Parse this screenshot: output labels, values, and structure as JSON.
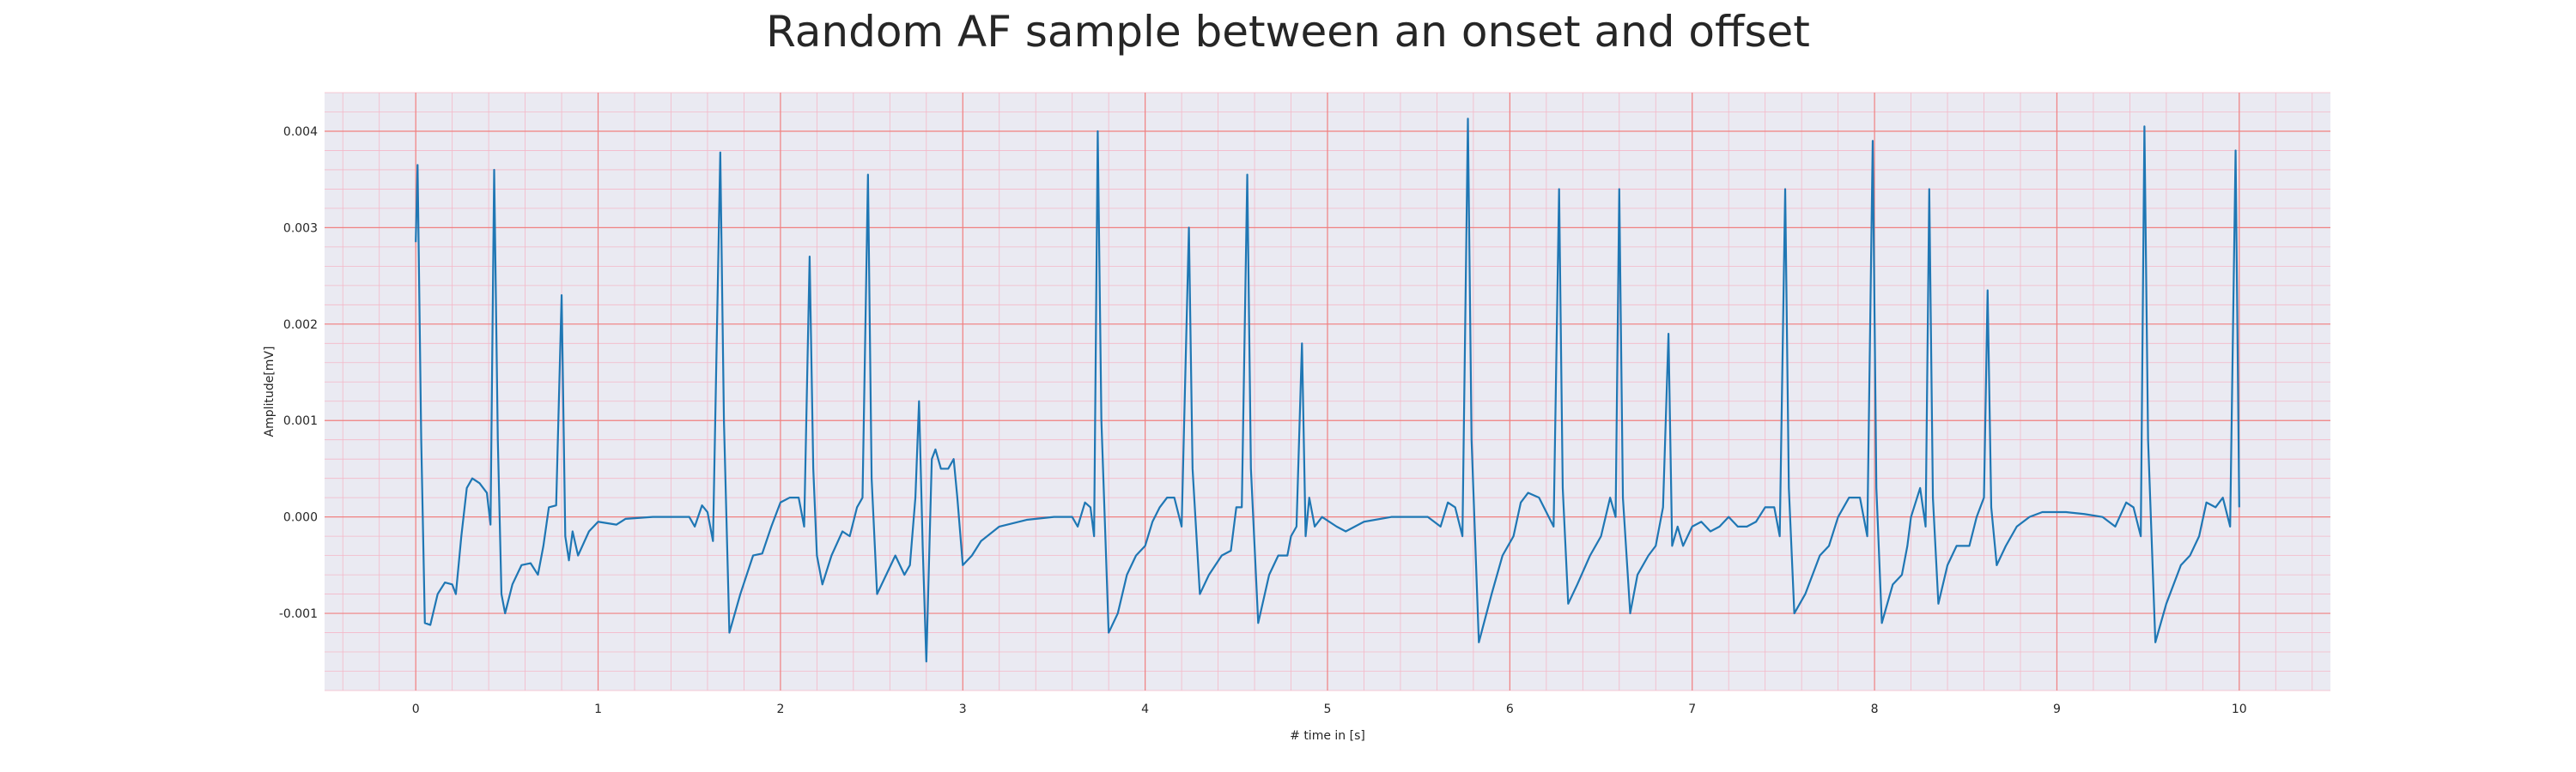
{
  "chart_data": {
    "type": "line",
    "title": "Random AF sample between an onset and offset",
    "xlabel": "# time in [s]",
    "ylabel": "Amplitude[mV]",
    "xlim": [
      -0.5,
      10.5
    ],
    "ylim": [
      -0.0018,
      0.0044
    ],
    "xticks": [
      0,
      1,
      2,
      3,
      4,
      5,
      6,
      7,
      8,
      9,
      10
    ],
    "xtick_labels": [
      "0",
      "1",
      "2",
      "3",
      "4",
      "5",
      "6",
      "7",
      "8",
      "9",
      "10"
    ],
    "yticks": [
      -0.001,
      0.0,
      0.001,
      0.002,
      0.003,
      0.004
    ],
    "ytick_labels": [
      "-0.001",
      "0.000",
      "0.001",
      "0.002",
      "0.003",
      "0.004"
    ],
    "grid": true,
    "minor_grid": true,
    "colors": {
      "background": "#eaeaf2",
      "major_grid": "#f08080",
      "minor_grid": "#f4b8c8",
      "line": "#1f77b4"
    },
    "series": [
      {
        "values": [
          [
            0.0,
            0.00285
          ],
          [
            0.01,
            0.00365
          ],
          [
            0.03,
            0.0008
          ],
          [
            0.05,
            -0.0011
          ],
          [
            0.08,
            -0.00112
          ],
          [
            0.12,
            -0.0008
          ],
          [
            0.16,
            -0.00068
          ],
          [
            0.2,
            -0.0007
          ],
          [
            0.22,
            -0.0008
          ],
          [
            0.25,
            -0.0002
          ],
          [
            0.28,
            0.0003
          ],
          [
            0.31,
            0.0004
          ],
          [
            0.35,
            0.00035
          ],
          [
            0.39,
            0.00025
          ],
          [
            0.41,
            -8e-05
          ],
          [
            0.43,
            0.0036
          ],
          [
            0.45,
            0.0008
          ],
          [
            0.47,
            -0.0008
          ],
          [
            0.49,
            -0.001
          ],
          [
            0.53,
            -0.0007
          ],
          [
            0.58,
            -0.0005
          ],
          [
            0.63,
            -0.00048
          ],
          [
            0.67,
            -0.0006
          ],
          [
            0.7,
            -0.0003
          ],
          [
            0.73,
            0.0001
          ],
          [
            0.77,
            0.00012
          ],
          [
            0.8,
            0.0023
          ],
          [
            0.82,
            -0.0002
          ],
          [
            0.84,
            -0.00045
          ],
          [
            0.86,
            -0.00015
          ],
          [
            0.89,
            -0.0004
          ],
          [
            0.95,
            -0.00015
          ],
          [
            1.0,
            -5e-05
          ],
          [
            1.1,
            -8e-05
          ],
          [
            1.15,
            -2e-05
          ],
          [
            1.3,
            0.0
          ],
          [
            1.45,
            0.0
          ],
          [
            1.5,
            0.0
          ],
          [
            1.53,
            -0.0001
          ],
          [
            1.57,
            0.00012
          ],
          [
            1.6,
            5e-05
          ],
          [
            1.63,
            -0.00025
          ],
          [
            1.67,
            0.00378
          ],
          [
            1.69,
            0.001
          ],
          [
            1.72,
            -0.0012
          ],
          [
            1.78,
            -0.0008
          ],
          [
            1.85,
            -0.0004
          ],
          [
            1.9,
            -0.00038
          ],
          [
            1.95,
            -0.0001
          ],
          [
            2.0,
            0.00015
          ],
          [
            2.05,
            0.0002
          ],
          [
            2.1,
            0.0002
          ],
          [
            2.13,
            -0.0001
          ],
          [
            2.16,
            0.0027
          ],
          [
            2.18,
            0.0005
          ],
          [
            2.2,
            -0.0004
          ],
          [
            2.23,
            -0.0007
          ],
          [
            2.28,
            -0.0004
          ],
          [
            2.34,
            -0.00015
          ],
          [
            2.38,
            -0.0002
          ],
          [
            2.42,
            0.0001
          ],
          [
            2.45,
            0.0002
          ],
          [
            2.48,
            0.00355
          ],
          [
            2.5,
            0.0004
          ],
          [
            2.53,
            -0.0008
          ],
          [
            2.58,
            -0.0006
          ],
          [
            2.63,
            -0.0004
          ],
          [
            2.68,
            -0.0006
          ],
          [
            2.71,
            -0.0005
          ],
          [
            2.74,
            0.0002
          ],
          [
            2.76,
            0.0012
          ],
          [
            2.78,
            -0.0003
          ],
          [
            2.8,
            -0.0015
          ],
          [
            2.83,
            0.0006
          ],
          [
            2.85,
            0.0007
          ],
          [
            2.88,
            0.0005
          ],
          [
            2.92,
            0.0005
          ],
          [
            2.95,
            0.0006
          ],
          [
            2.97,
            0.0002
          ],
          [
            3.0,
            -0.0005
          ],
          [
            3.05,
            -0.0004
          ],
          [
            3.1,
            -0.00025
          ],
          [
            3.2,
            -0.0001
          ],
          [
            3.35,
            -3e-05
          ],
          [
            3.5,
            0.0
          ],
          [
            3.6,
            0.0
          ],
          [
            3.63,
            -0.0001
          ],
          [
            3.67,
            0.00015
          ],
          [
            3.7,
            0.0001
          ],
          [
            3.72,
            -0.0002
          ],
          [
            3.74,
            0.004
          ],
          [
            3.76,
            0.001
          ],
          [
            3.8,
            -0.0012
          ],
          [
            3.85,
            -0.001
          ],
          [
            3.9,
            -0.0006
          ],
          [
            3.95,
            -0.0004
          ],
          [
            4.0,
            -0.0003
          ],
          [
            4.04,
            -5e-05
          ],
          [
            4.08,
            0.0001
          ],
          [
            4.12,
            0.0002
          ],
          [
            4.16,
            0.0002
          ],
          [
            4.2,
            -0.0001
          ],
          [
            4.24,
            0.003
          ],
          [
            4.26,
            0.0005
          ],
          [
            4.3,
            -0.0008
          ],
          [
            4.35,
            -0.0006
          ],
          [
            4.42,
            -0.0004
          ],
          [
            4.47,
            -0.00035
          ],
          [
            4.5,
            0.0001
          ],
          [
            4.53,
            0.0001
          ],
          [
            4.56,
            0.00355
          ],
          [
            4.58,
            0.0005
          ],
          [
            4.62,
            -0.0011
          ],
          [
            4.68,
            -0.0006
          ],
          [
            4.73,
            -0.0004
          ],
          [
            4.78,
            -0.0004
          ],
          [
            4.8,
            -0.0002
          ],
          [
            4.83,
            -0.0001
          ],
          [
            4.86,
            0.0018
          ],
          [
            4.88,
            -0.0002
          ],
          [
            4.9,
            0.0002
          ],
          [
            4.93,
            -0.0001
          ],
          [
            4.97,
            0.0
          ],
          [
            5.05,
            -0.0001
          ],
          [
            5.1,
            -0.00015
          ],
          [
            5.2,
            -5e-05
          ],
          [
            5.35,
            0.0
          ],
          [
            5.55,
            0.0
          ],
          [
            5.62,
            -0.0001
          ],
          [
            5.66,
            0.00015
          ],
          [
            5.7,
            0.0001
          ],
          [
            5.74,
            -0.0002
          ],
          [
            5.77,
            0.00413
          ],
          [
            5.79,
            0.0008
          ],
          [
            5.83,
            -0.0013
          ],
          [
            5.9,
            -0.0008
          ],
          [
            5.96,
            -0.0004
          ],
          [
            6.02,
            -0.0002
          ],
          [
            6.06,
            0.00015
          ],
          [
            6.1,
            0.00025
          ],
          [
            6.16,
            0.0002
          ],
          [
            6.24,
            -0.0001
          ],
          [
            6.27,
            0.0034
          ],
          [
            6.29,
            0.0003
          ],
          [
            6.32,
            -0.0009
          ],
          [
            6.37,
            -0.0007
          ],
          [
            6.44,
            -0.0004
          ],
          [
            6.5,
            -0.0002
          ],
          [
            6.55,
            0.0002
          ],
          [
            6.58,
            0.0
          ],
          [
            6.6,
            0.0034
          ],
          [
            6.62,
            0.0002
          ],
          [
            6.66,
            -0.001
          ],
          [
            6.7,
            -0.0006
          ],
          [
            6.76,
            -0.0004
          ],
          [
            6.8,
            -0.0003
          ],
          [
            6.84,
            0.0001
          ],
          [
            6.87,
            0.0019
          ],
          [
            6.89,
            -0.0003
          ],
          [
            6.92,
            -0.0001
          ],
          [
            6.95,
            -0.0003
          ],
          [
            7.0,
            -0.0001
          ],
          [
            7.05,
            -5e-05
          ],
          [
            7.1,
            -0.00015
          ],
          [
            7.15,
            -0.0001
          ],
          [
            7.2,
            0.0
          ],
          [
            7.25,
            -0.0001
          ],
          [
            7.3,
            -0.0001
          ],
          [
            7.35,
            -5e-05
          ],
          [
            7.4,
            0.0001
          ],
          [
            7.45,
            0.0001
          ],
          [
            7.48,
            -0.0002
          ],
          [
            7.51,
            0.0034
          ],
          [
            7.53,
            0.0003
          ],
          [
            7.56,
            -0.001
          ],
          [
            7.62,
            -0.0008
          ],
          [
            7.7,
            -0.0004
          ],
          [
            7.75,
            -0.0003
          ],
          [
            7.8,
            0.0
          ],
          [
            7.86,
            0.0002
          ],
          [
            7.92,
            0.0002
          ],
          [
            7.96,
            -0.0002
          ],
          [
            7.99,
            0.0039
          ],
          [
            8.01,
            0.0003
          ],
          [
            8.04,
            -0.0011
          ],
          [
            8.1,
            -0.0007
          ],
          [
            8.15,
            -0.0006
          ],
          [
            8.18,
            -0.0003
          ],
          [
            8.2,
            0.0
          ],
          [
            8.25,
            0.0003
          ],
          [
            8.28,
            -0.0001
          ],
          [
            8.3,
            0.0034
          ],
          [
            8.32,
            0.0002
          ],
          [
            8.35,
            -0.0009
          ],
          [
            8.4,
            -0.0005
          ],
          [
            8.45,
            -0.0003
          ],
          [
            8.52,
            -0.0003
          ],
          [
            8.56,
            0.0
          ],
          [
            8.6,
            0.0002
          ],
          [
            8.62,
            0.00235
          ],
          [
            8.64,
            0.0001
          ],
          [
            8.67,
            -0.0005
          ],
          [
            8.72,
            -0.0003
          ],
          [
            8.78,
            -0.0001
          ],
          [
            8.85,
            0.0
          ],
          [
            8.92,
            5e-05
          ],
          [
            9.05,
            5e-05
          ],
          [
            9.15,
            3e-05
          ],
          [
            9.25,
            0.0
          ],
          [
            9.32,
            -0.0001
          ],
          [
            9.38,
            0.00015
          ],
          [
            9.42,
            0.0001
          ],
          [
            9.46,
            -0.0002
          ],
          [
            9.48,
            0.00405
          ],
          [
            9.5,
            0.0008
          ],
          [
            9.54,
            -0.0013
          ],
          [
            9.6,
            -0.0009
          ],
          [
            9.68,
            -0.0005
          ],
          [
            9.73,
            -0.0004
          ],
          [
            9.78,
            -0.0002
          ],
          [
            9.82,
            0.00015
          ],
          [
            9.87,
            0.0001
          ],
          [
            9.91,
            0.0002
          ],
          [
            9.95,
            -0.0001
          ],
          [
            9.98,
            0.0038
          ],
          [
            10.0,
            0.0001
          ]
        ]
      }
    ]
  }
}
